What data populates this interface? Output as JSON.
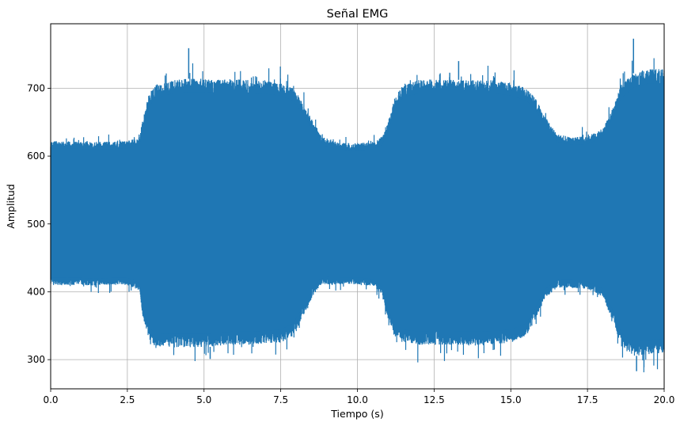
{
  "chart_data": {
    "type": "line",
    "title": "Señal EMG",
    "xlabel": "Tiempo (s)",
    "ylabel": "Amplitud",
    "xlim": [
      0,
      20
    ],
    "ylim": [
      257,
      795
    ],
    "xticks": [
      0.0,
      2.5,
      5.0,
      7.5,
      10.0,
      12.5,
      15.0,
      17.5,
      20.0
    ],
    "xtick_labels": [
      "0.0",
      "2.5",
      "5.0",
      "7.5",
      "10.0",
      "12.5",
      "15.0",
      "17.5",
      "20.0"
    ],
    "yticks": [
      300,
      400,
      500,
      600,
      700
    ],
    "ytick_labels": [
      "300",
      "400",
      "500",
      "600",
      "700"
    ],
    "grid": true,
    "series_color": "#1f77b4",
    "series": [
      {
        "x": [
          0.0,
          0.5,
          1.0,
          1.5,
          2.0,
          2.5,
          2.9,
          3.0,
          3.2,
          3.4,
          4.0,
          4.5,
          5.0,
          5.5,
          6.0,
          6.5,
          7.0,
          7.5,
          7.9,
          8.2,
          8.5,
          8.8,
          9.0,
          9.5,
          10.0,
          10.5,
          10.8,
          11.0,
          11.2,
          11.5,
          12.0,
          12.5,
          13.0,
          13.5,
          14.0,
          14.5,
          15.0,
          15.5,
          15.8,
          16.1,
          16.5,
          17.0,
          17.5,
          18.0,
          18.3,
          18.6,
          19.0,
          19.5,
          20.0
        ],
        "upper": [
          622,
          622,
          621,
          621,
          621,
          622,
          628,
          655,
          690,
          705,
          712,
          714,
          714,
          713,
          713,
          712,
          711,
          708,
          700,
          680,
          655,
          632,
          624,
          620,
          619,
          621,
          628,
          650,
          685,
          706,
          712,
          713,
          713,
          712,
          712,
          712,
          708,
          700,
          685,
          660,
          632,
          628,
          629,
          640,
          670,
          705,
          722,
          728,
          728
        ],
        "lower": [
          410,
          410,
          410,
          409,
          410,
          410,
          402,
          365,
          330,
          320,
          318,
          318,
          318,
          320,
          322,
          322,
          323,
          325,
          335,
          360,
          390,
          408,
          411,
          411,
          411,
          408,
          395,
          360,
          335,
          325,
          322,
          322,
          322,
          322,
          322,
          323,
          325,
          335,
          360,
          390,
          406,
          406,
          404,
          392,
          360,
          320,
          305,
          308,
          310
        ],
        "peaks_max": [
          [
            4.5,
            759
          ],
          [
            13.3,
            740
          ],
          [
            19.0,
            773
          ]
        ],
        "peaks_min": [
          [
            5.2,
            301
          ],
          [
            19.1,
            283
          ]
        ]
      }
    ]
  }
}
